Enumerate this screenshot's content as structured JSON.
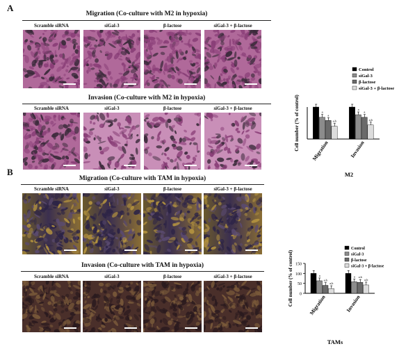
{
  "panel_a": {
    "letter": "A",
    "migration_title": "Migration (Co-culture with M2 in hypoxia)",
    "invasion_title": "Invasion (Co-culture with M2 in hypoxia)",
    "columns": [
      "Scramble siRNA",
      "siGal-3",
      "β-lactose",
      "siGal-3 + β-lactose"
    ],
    "chart_data": {
      "type": "bar",
      "title": "M2",
      "ylabel": "Cell number (% of control)",
      "ylim": [
        0,
        100
      ],
      "categories": [
        "Migration",
        "Invasion"
      ],
      "series": [
        {
          "name": "Control",
          "color": "#000000",
          "values": [
            100,
            100
          ]
        },
        {
          "name": "siGal-3",
          "color": "#8c8c8c",
          "values": [
            68,
            76
          ]
        },
        {
          "name": "β-lactose",
          "color": "#6a6a6a",
          "values": [
            58,
            68
          ]
        },
        {
          "name": "siGal-3 + β-lactose",
          "color": "#dcdcdc",
          "values": [
            40,
            44
          ]
        }
      ],
      "annotations": [
        [
          "",
          "a",
          "a",
          "a,b"
        ],
        [
          "",
          "a",
          "a",
          "a,b"
        ]
      ],
      "legend": "top-right"
    }
  },
  "panel_b": {
    "letter": "B",
    "migration_title": "Migration (Co-culture with TAM in hypoxia)",
    "invasion_title": "Invasion (Co-culture with TAM in hypoxia)",
    "columns": [
      "Scramble siRNA",
      "siGal-3",
      "β-lactose",
      "siGal-3 + β-lactose"
    ],
    "chart_data": {
      "type": "bar",
      "title": "TAMs",
      "ylabel": "Cell number (% of control)",
      "ylim": [
        0,
        150
      ],
      "yticks": [
        0,
        50,
        100,
        150
      ],
      "categories": [
        "Migration",
        "Invasion"
      ],
      "series": [
        {
          "name": "Control",
          "color": "#000000",
          "values": [
            100,
            100
          ]
        },
        {
          "name": "siGal-3",
          "color": "#8c8c8c",
          "values": [
            63,
            58
          ]
        },
        {
          "name": "β-lactose",
          "color": "#6a6a6a",
          "values": [
            40,
            55
          ]
        },
        {
          "name": "siGal-3 + β-lactose",
          "color": "#dcdcdc",
          "values": [
            24,
            42
          ]
        }
      ],
      "annotations": [
        [
          "",
          "a",
          "a,b",
          "a,b"
        ],
        [
          "",
          "a",
          "a,b",
          "a,b"
        ]
      ],
      "legend": "top-right"
    }
  },
  "colors": {
    "stain_purple": "#8a3f78",
    "stain_pink": "#c98fb8",
    "stain_dark": "#3a2a3a",
    "stain_gold": "#b3923f"
  }
}
